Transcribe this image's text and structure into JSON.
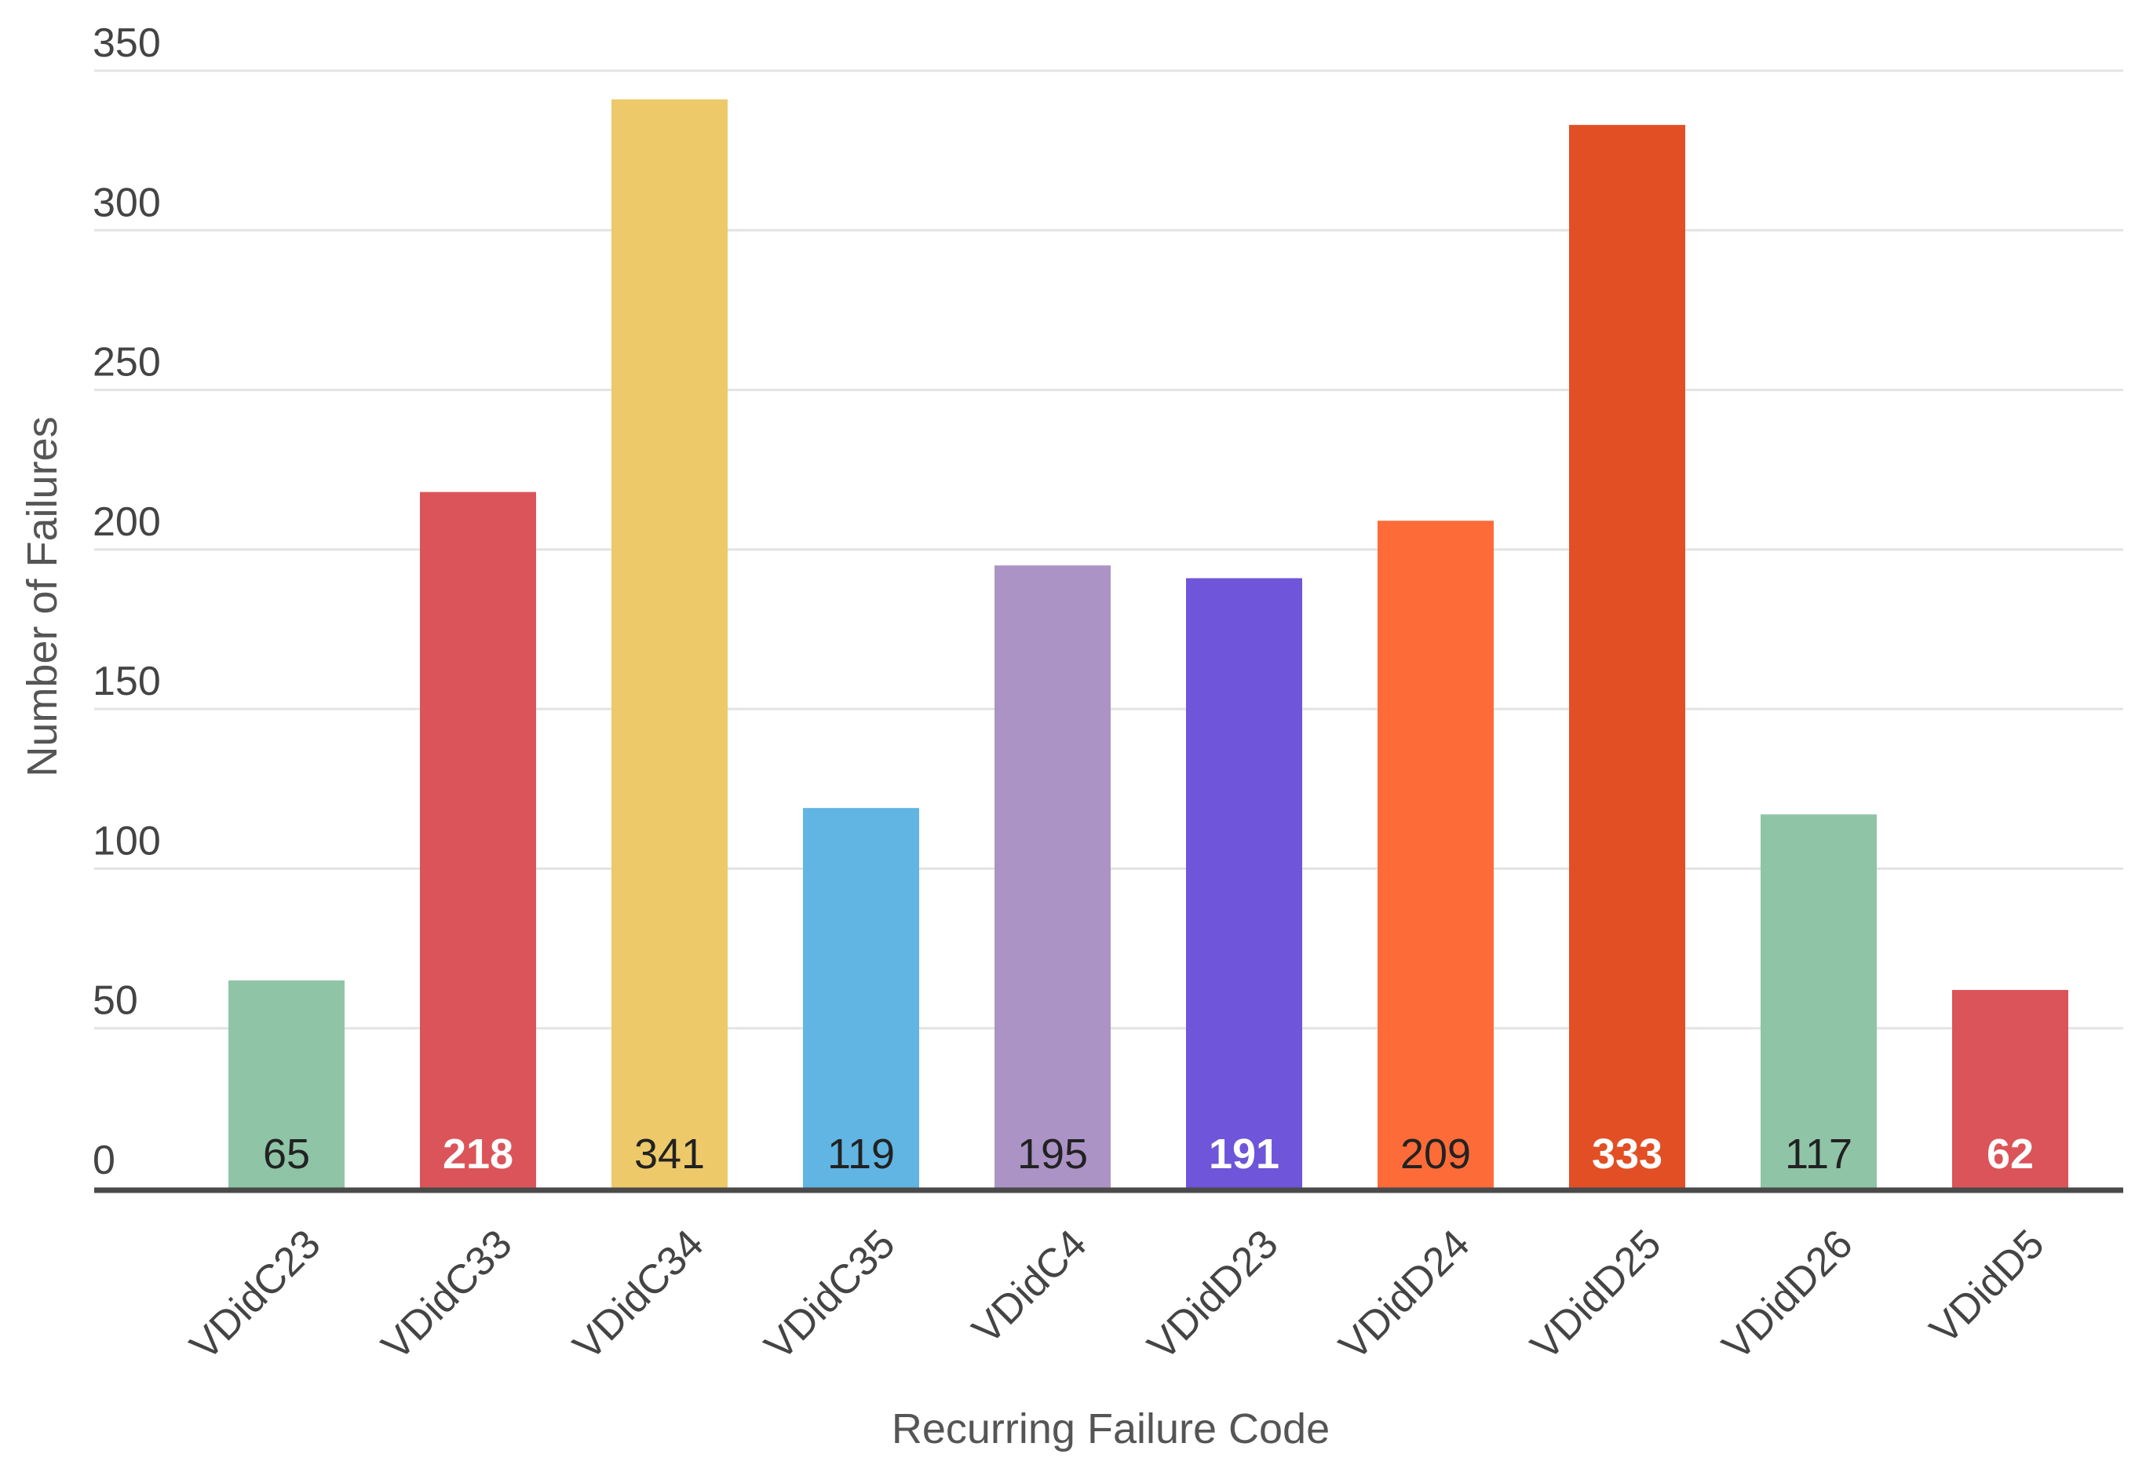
{
  "chart_data": {
    "type": "bar",
    "title": "",
    "xlabel": "Recurring Failure Code",
    "ylabel": "Number of Failures",
    "ylim": [
      0,
      350
    ],
    "yticks": [
      0,
      50,
      100,
      150,
      200,
      250,
      300,
      350
    ],
    "grid": true,
    "legend": "none",
    "categories": [
      "VDidC23",
      "VDidC33",
      "VDidC34",
      "VDidC35",
      "VDidC4",
      "VDidD23",
      "VDidD24",
      "VDidD25",
      "VDidD26",
      "VDidD5"
    ],
    "values": [
      65,
      218,
      341,
      119,
      195,
      191,
      209,
      333,
      117,
      62
    ],
    "value_labels": [
      "65",
      "218",
      "341",
      "119",
      "195",
      "191",
      "209",
      "333",
      "117",
      "62"
    ],
    "colors": [
      "#8fc4a6",
      "#db5459",
      "#edc96a",
      "#60b5e3",
      "#ac93c6",
      "#6e55d9",
      "#fd6b38",
      "#e24f24",
      "#8fc4a6",
      "#db5459"
    ],
    "label_colors": [
      "#222222",
      "#ffffff",
      "#222222",
      "#222222",
      "#222222",
      "#ffffff",
      "#222222",
      "#ffffff",
      "#222222",
      "#ffffff"
    ],
    "label_bold": [
      false,
      true,
      false,
      false,
      false,
      true,
      false,
      true,
      false,
      true
    ]
  }
}
